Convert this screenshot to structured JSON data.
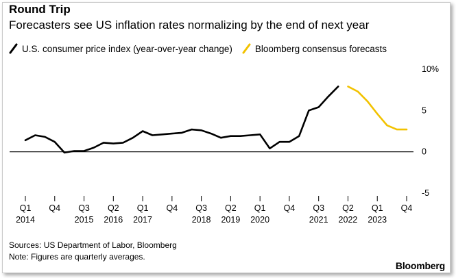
{
  "header": {
    "title": "Round Trip",
    "subtitle": "Forecasters see US inflation rates normalizing by the end of next year"
  },
  "legend": [
    {
      "label": "U.S. consumer price index (year-over-year change)",
      "color": "#000000"
    },
    {
      "label": "Bloomberg consensus forecasts",
      "color": "#f2c200"
    }
  ],
  "footer": {
    "sources": "Sources: US Department of Labor, Bloomberg",
    "note": "Note: Figures are quarterly averages.",
    "brand": "Bloomberg"
  },
  "chart_data": {
    "type": "line",
    "title": "Round Trip",
    "subtitle": "Forecasters see US inflation rates normalizing by the end of next year",
    "ylim": [
      -5,
      10
    ],
    "yticks": [
      10,
      5,
      0,
      -5
    ],
    "ytick_labels": [
      "10%",
      "5",
      "0",
      "-5"
    ],
    "x_ticks": [
      {
        "q": "Q1",
        "year": "2014",
        "t": 0
      },
      {
        "q": "Q4",
        "year": "",
        "t": 3
      },
      {
        "q": "Q3",
        "year": "2015",
        "t": 6
      },
      {
        "q": "Q2",
        "year": "2016",
        "t": 9
      },
      {
        "q": "Q1",
        "year": "2017",
        "t": 12
      },
      {
        "q": "Q4",
        "year": "",
        "t": 15
      },
      {
        "q": "Q3",
        "year": "2018",
        "t": 18
      },
      {
        "q": "Q2",
        "year": "2019",
        "t": 21
      },
      {
        "q": "Q1",
        "year": "2020",
        "t": 24
      },
      {
        "q": "Q4",
        "year": "",
        "t": 27
      },
      {
        "q": "Q3",
        "year": "2021",
        "t": 30
      },
      {
        "q": "Q2",
        "year": "2022",
        "t": 33
      },
      {
        "q": "Q1",
        "year": "2023",
        "t": 36
      },
      {
        "q": "Q4",
        "year": "",
        "t": 39
      }
    ],
    "series": [
      {
        "name": "U.S. consumer price index (year-over-year change)",
        "color": "#000000",
        "x": [
          0,
          1,
          2,
          3,
          4,
          5,
          6,
          7,
          8,
          9,
          10,
          11,
          12,
          13,
          14,
          15,
          16,
          17,
          18,
          19,
          20,
          21,
          22,
          23,
          24,
          25,
          26,
          27,
          28,
          29,
          30,
          31,
          32
        ],
        "values": [
          1.4,
          2.0,
          1.8,
          1.2,
          -0.1,
          0.1,
          0.1,
          0.5,
          1.1,
          1.0,
          1.1,
          1.7,
          2.5,
          2.0,
          2.1,
          2.2,
          2.3,
          2.7,
          2.6,
          2.2,
          1.7,
          1.9,
          1.9,
          2.0,
          2.1,
          0.4,
          1.2,
          1.2,
          1.9,
          5.0,
          5.4,
          6.7,
          7.9
        ]
      },
      {
        "name": "Bloomberg consensus forecasts",
        "color": "#f2c200",
        "x": [
          33,
          34,
          35,
          36,
          37,
          38,
          39
        ],
        "values": [
          7.9,
          7.3,
          6.1,
          4.6,
          3.2,
          2.7,
          2.7
        ]
      }
    ]
  }
}
